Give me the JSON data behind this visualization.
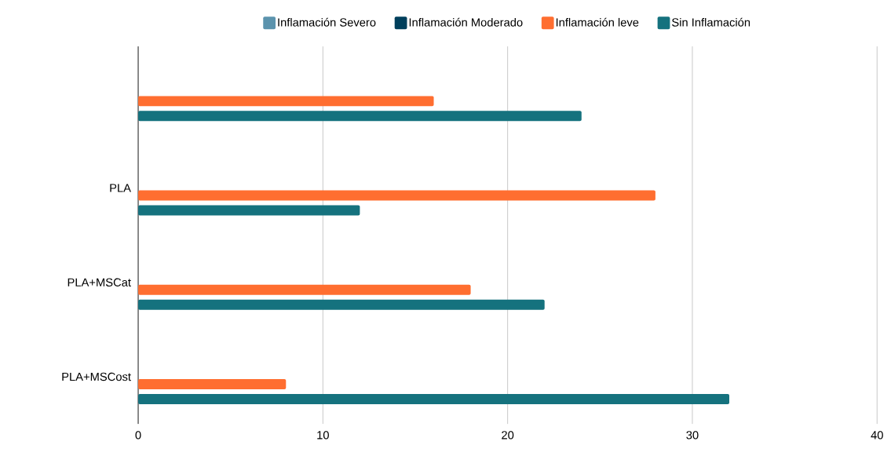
{
  "chart_data": {
    "type": "bar",
    "orientation": "horizontal",
    "categories": [
      null,
      "PLA",
      "PLA+MSCat",
      "PLA+MSCost"
    ],
    "series": [
      {
        "name": "Inflamación Severo",
        "color": "#5b93ad",
        "values": [
          0,
          0,
          0,
          0
        ]
      },
      {
        "name": "Inflamación Moderado",
        "color": "#003f5c",
        "values": [
          0,
          0,
          0,
          0
        ]
      },
      {
        "name": "Inflamación leve",
        "color": "#ff6e30",
        "values": [
          16,
          28,
          18,
          8
        ]
      },
      {
        "name": "Sin Inflamación",
        "color": "#15727e",
        "values": [
          24,
          12,
          22,
          32
        ]
      }
    ],
    "xlim": [
      0,
      40
    ],
    "xticks": [
      0,
      10,
      20,
      30,
      40
    ],
    "grid": "x",
    "legend": "top"
  }
}
